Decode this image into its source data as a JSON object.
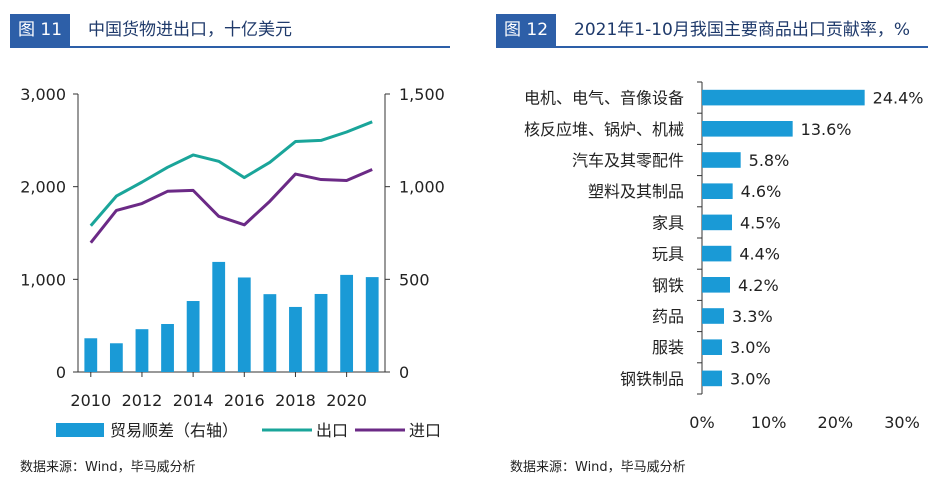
{
  "left": {
    "tag": "图 11",
    "title": "中国货物进出口，十亿美元",
    "source": "数据来源：Wind，毕马威分析"
  },
  "right": {
    "tag": "图 12",
    "title": "2021年1-10月我国主要商品出口贡献率，%",
    "source": "数据来源：Wind，毕马威分析"
  },
  "chart_data": [
    {
      "type": "bar+line",
      "title": "中国货物进出口，十亿美元",
      "x": [
        2010,
        2011,
        2012,
        2013,
        2014,
        2015,
        2016,
        2017,
        2018,
        2019,
        2020,
        2021
      ],
      "x_tick_labels": [
        "2010",
        "2012",
        "2014",
        "2016",
        "2018",
        "2020"
      ],
      "y_left_ticks": [
        "3,000",
        "2,000",
        "1,000",
        "0"
      ],
      "y_left_range": [
        0,
        3000
      ],
      "y_right_ticks": [
        "1,500",
        "1,000",
        "500",
        "0"
      ],
      "y_right_range": [
        0,
        1500
      ],
      "series": [
        {
          "name": "贸易顺差（右轴）",
          "type": "bar",
          "axis": "right",
          "color": "#1a9ad6",
          "values": [
            182,
            155,
            231,
            259,
            383,
            594,
            510,
            420,
            351,
            421,
            524,
            512
          ]
        },
        {
          "name": "出口",
          "type": "line",
          "axis": "left",
          "color": "#1aa59a",
          "values": [
            1578,
            1898,
            2049,
            2209,
            2342,
            2274,
            2098,
            2263,
            2487,
            2499,
            2590,
            2700
          ]
        },
        {
          "name": "进口",
          "type": "line",
          "axis": "left",
          "color": "#6b2a86",
          "values": [
            1396,
            1743,
            1818,
            1950,
            1960,
            1680,
            1588,
            1843,
            2136,
            2077,
            2066,
            2185
          ]
        }
      ],
      "legend_position": "bottom",
      "grid": false
    },
    {
      "type": "bar",
      "orientation": "horizontal",
      "title": "2021年1-10月我国主要商品出口贡献率，%",
      "categories": [
        "电机、电气、音像设备",
        "核反应堆、锅炉、机械",
        "汽车及其零配件",
        "塑料及其制品",
        "家具",
        "玩具",
        "钢铁",
        "药品",
        "服装",
        "钢铁制品"
      ],
      "values": [
        24.4,
        13.6,
        5.8,
        4.6,
        4.5,
        4.4,
        4.2,
        3.3,
        3.0,
        3.0
      ],
      "value_labels": [
        "24.4%",
        "13.6%",
        "5.8%",
        "4.6%",
        "4.5%",
        "4.4%",
        "4.2%",
        "3.3%",
        "3.0%",
        "3.0%"
      ],
      "x_ticks": [
        "0%",
        "10%",
        "20%",
        "30%"
      ],
      "xlim": [
        0,
        30
      ],
      "color": "#1a9ad6",
      "grid": false
    }
  ]
}
